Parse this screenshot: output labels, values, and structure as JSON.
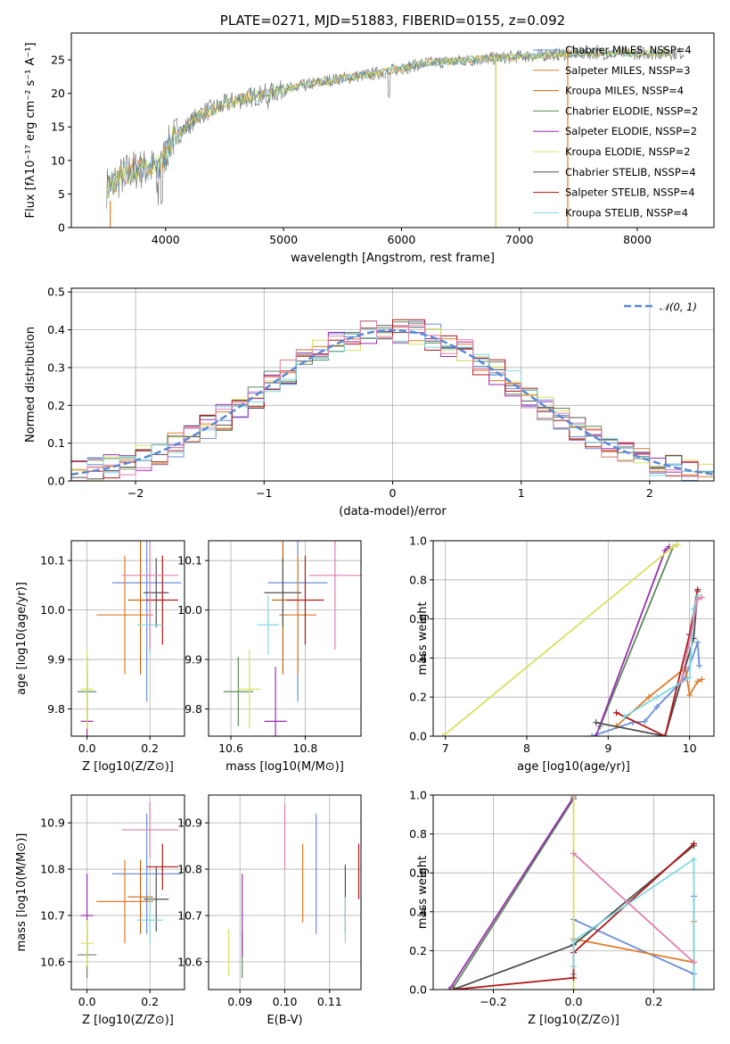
{
  "colors": [
    "#6a8fd8",
    "#e07b2a",
    "#c06a12",
    "#5a8a5a",
    "#9a2eb0",
    "#d8e060",
    "#505050",
    "#b01818",
    "#80d8e0",
    "#e080b0"
  ],
  "chart_data": [
    {
      "type": "line",
      "title": "PLATE=0271, MJD=51883, FIBERID=0155, z=0.092",
      "xlabel": "wavelength [Angstrom, rest frame]",
      "ylabel": "Flux [fλ10⁻¹⁷ erg cm⁻² s⁻¹ A⁻¹]",
      "xlim": [
        3200,
        8650
      ],
      "ylim": [
        0,
        29
      ],
      "xticks": [
        4000,
        5000,
        6000,
        7000,
        8000
      ],
      "yticks": [
        0,
        5,
        10,
        15,
        20,
        25
      ],
      "legend": [
        "Chabrier MILES, NSSP=4",
        "Salpeter MILES, NSSP=3",
        "Kroupa MILES, NSSP=4",
        "Chabrier ELODIE, NSSP=2",
        "Salpeter ELODIE, NSSP=2",
        "Kroupa ELODIE, NSSP=2",
        "Chabrier STELIB, NSSP=4",
        "Salpeter STELIB, NSSP=4",
        "Kroupa STELIB, NSSP=4"
      ],
      "legend_placement": "top-right",
      "continuum": [
        [
          3500,
          6
        ],
        [
          3700,
          8.5
        ],
        [
          3950,
          9
        ],
        [
          4050,
          13
        ],
        [
          4300,
          17
        ],
        [
          4600,
          19
        ],
        [
          5000,
          20.5
        ],
        [
          5400,
          22
        ],
        [
          5800,
          23
        ],
        [
          6200,
          24.5
        ],
        [
          6600,
          25
        ],
        [
          7000,
          25.5
        ],
        [
          7500,
          26
        ],
        [
          8000,
          26
        ],
        [
          8400,
          26
        ]
      ]
    },
    {
      "type": "step",
      "xlabel": "(data-model)/error",
      "ylabel": "Normed distribution",
      "xlim": [
        -2.5,
        2.5
      ],
      "ylim": [
        0,
        0.51
      ],
      "xticks": [
        -2,
        -1,
        0,
        1,
        2
      ],
      "xticklabels": [
        "−2",
        "−1",
        "0",
        "1",
        "2"
      ],
      "yticks": [
        0.0,
        0.1,
        0.2,
        0.3,
        0.4,
        0.5
      ],
      "yticklabels": [
        "0.0",
        "0.1",
        "0.2",
        "0.3",
        "0.4",
        "0.5"
      ],
      "legend": [
        "𝒩(0, 1)"
      ],
      "legend_placement": "top-right"
    },
    {
      "type": "scatter",
      "xlabel": "Z [log10(Z/Z⊙)]",
      "ylabel": "age  [log10(age/yr)]",
      "xlim": [
        -0.05,
        0.31
      ],
      "ylim": [
        9.745,
        10.14
      ],
      "xticks": [
        0.0,
        0.2
      ],
      "xticklabels": [
        "0.0",
        "0.2"
      ],
      "yticks": [
        9.8,
        9.9,
        10.0,
        10.1
      ],
      "yticklabels": [
        "9.8",
        "9.9",
        "10.0",
        "10.1"
      ],
      "points": [
        {
          "c": 0,
          "x": 0.19,
          "y": 10.055,
          "ex": 0.11,
          "ey": 0.24
        },
        {
          "c": 1,
          "x": 0.12,
          "y": 9.99,
          "ex": 0.09,
          "ey": 0.12
        },
        {
          "c": 2,
          "x": 0.17,
          "y": 10.02,
          "ex": 0.04,
          "ey": 0.15
        },
        {
          "c": 3,
          "x": 0.0,
          "y": 9.835,
          "ex": 0.03,
          "ey": 0.07
        },
        {
          "c": 4,
          "x": 0.0,
          "y": 9.775,
          "ex": 0.02,
          "ey": 0.11
        },
        {
          "c": 5,
          "x": 0.0,
          "y": 9.84,
          "ex": 0.02,
          "ey": 0.08
        },
        {
          "c": 6,
          "x": 0.22,
          "y": 10.035,
          "ex": 0.04,
          "ey": 0.07
        },
        {
          "c": 7,
          "x": 0.24,
          "y": 10.02,
          "ex": 0.05,
          "ey": 0.09
        },
        {
          "c": 8,
          "x": 0.2,
          "y": 9.97,
          "ex": 0.04,
          "ey": 0.06
        },
        {
          "c": 9,
          "x": 0.2,
          "y": 10.07,
          "ex": 0.09,
          "ey": 0.15
        }
      ]
    },
    {
      "type": "scatter",
      "xlabel": "mass [log10(M/M⊙)]",
      "ylabel": "",
      "xlim": [
        10.54,
        10.95
      ],
      "ylim": [
        9.745,
        10.14
      ],
      "xticks": [
        10.6,
        10.8
      ],
      "xticklabels": [
        "10.6",
        "10.8"
      ],
      "yticks": [
        9.8,
        9.9,
        10.0,
        10.1
      ],
      "yticklabels": [
        "9.8",
        "9.9",
        "10.0",
        "10.1"
      ],
      "points": [
        {
          "c": 0,
          "x": 10.78,
          "y": 10.055,
          "ex": 0.08,
          "ey": 0.24
        },
        {
          "c": 1,
          "x": 10.78,
          "y": 9.99,
          "ex": 0.05,
          "ey": 0.12
        },
        {
          "c": 2,
          "x": 10.74,
          "y": 10.02,
          "ex": 0.03,
          "ey": 0.15
        },
        {
          "c": 3,
          "x": 10.62,
          "y": 9.835,
          "ex": 0.04,
          "ey": 0.07
        },
        {
          "c": 4,
          "x": 10.72,
          "y": 9.775,
          "ex": 0.03,
          "ey": 0.11
        },
        {
          "c": 5,
          "x": 10.65,
          "y": 9.84,
          "ex": 0.03,
          "ey": 0.08
        },
        {
          "c": 6,
          "x": 10.74,
          "y": 10.035,
          "ex": 0.05,
          "ey": 0.07
        },
        {
          "c": 7,
          "x": 10.8,
          "y": 10.02,
          "ex": 0.05,
          "ey": 0.09
        },
        {
          "c": 8,
          "x": 10.7,
          "y": 9.97,
          "ex": 0.03,
          "ey": 0.06
        },
        {
          "c": 9,
          "x": 10.88,
          "y": 10.07,
          "ex": 0.07,
          "ey": 0.15
        }
      ]
    },
    {
      "type": "line",
      "xlabel": "age  [log10(age/yr)]",
      "ylabel": "mass weight",
      "xlim": [
        6.85,
        10.3
      ],
      "ylim": [
        0,
        1.0
      ],
      "xticks": [
        7,
        8,
        9,
        10
      ],
      "xticklabels": [
        "7",
        "8",
        "9",
        "10"
      ],
      "yticks": [
        0.0,
        0.2,
        0.4,
        0.6,
        0.8,
        1.0
      ],
      "yticklabels": [
        "0.0",
        "0.2",
        "0.4",
        "0.6",
        "0.8",
        "1.0"
      ],
      "series": [
        {
          "c": 0,
          "x": [
            8.8,
            9.3,
            9.45,
            9.6,
            9.95,
            10.1,
            10.12
          ],
          "y": [
            0.0,
            0.07,
            0.075,
            0.15,
            0.3,
            0.48,
            0.36
          ]
        },
        {
          "c": 1,
          "x": [
            9.1,
            9.5,
            9.95,
            10.0,
            10.1,
            10.15
          ],
          "y": [
            0.05,
            0.2,
            0.35,
            0.21,
            0.28,
            0.29
          ]
        },
        {
          "c": 3,
          "x": [
            8.9,
            9.8,
            9.85
          ],
          "y": [
            0.05,
            0.97,
            0.98
          ]
        },
        {
          "c": 4,
          "x": [
            8.85,
            9.7,
            9.75
          ],
          "y": [
            0.0,
            0.95,
            0.97
          ]
        },
        {
          "c": 5,
          "x": [
            6.97,
            9.8,
            9.85
          ],
          "y": [
            0.0,
            0.97,
            0.98
          ]
        },
        {
          "c": 6,
          "x": [
            8.85,
            9.7,
            10.05,
            10.1
          ],
          "y": [
            0.07,
            0.0,
            0.5,
            0.74
          ]
        },
        {
          "c": 7,
          "x": [
            9.1,
            9.7,
            10.0,
            10.1
          ],
          "y": [
            0.12,
            0.0,
            0.52,
            0.75
          ]
        },
        {
          "c": 8,
          "x": [
            9.2,
            9.6,
            10.0,
            10.05,
            10.1
          ],
          "y": [
            0.1,
            0.2,
            0.3,
            0.65,
            0.72
          ]
        },
        {
          "c": 9,
          "x": [
            9.9,
            10.1,
            10.15
          ],
          "y": [
            0.28,
            0.7,
            0.71
          ]
        }
      ]
    },
    {
      "type": "scatter",
      "xlabel": "Z [log10(Z/Z⊙)]",
      "ylabel": "mass [log10(M/M⊙)]",
      "xlim": [
        -0.05,
        0.31
      ],
      "ylim": [
        10.54,
        10.96
      ],
      "xticks": [
        0.0,
        0.2
      ],
      "xticklabels": [
        "0.0",
        "0.2"
      ],
      "yticks": [
        10.6,
        10.7,
        10.8,
        10.9
      ],
      "yticklabels": [
        "10.6",
        "10.7",
        "10.8",
        "10.9"
      ],
      "points": [
        {
          "c": 0,
          "x": 0.19,
          "y": 10.79,
          "ex": 0.11,
          "ey": 0.13
        },
        {
          "c": 1,
          "x": 0.12,
          "y": 10.73,
          "ex": 0.09,
          "ey": 0.09
        },
        {
          "c": 2,
          "x": 0.17,
          "y": 10.74,
          "ex": 0.04,
          "ey": 0.08
        },
        {
          "c": 3,
          "x": 0.0,
          "y": 10.615,
          "ex": 0.03,
          "ey": 0.05
        },
        {
          "c": 4,
          "x": 0.0,
          "y": 10.7,
          "ex": 0.02,
          "ey": 0.09
        },
        {
          "c": 5,
          "x": 0.0,
          "y": 10.64,
          "ex": 0.02,
          "ey": 0.05
        },
        {
          "c": 6,
          "x": 0.22,
          "y": 10.735,
          "ex": 0.04,
          "ey": 0.07
        },
        {
          "c": 7,
          "x": 0.24,
          "y": 10.805,
          "ex": 0.05,
          "ey": 0.05
        },
        {
          "c": 8,
          "x": 0.2,
          "y": 10.69,
          "ex": 0.04,
          "ey": 0.05
        },
        {
          "c": 9,
          "x": 0.2,
          "y": 10.885,
          "ex": 0.09,
          "ey": 0.06
        }
      ]
    },
    {
      "type": "scatter",
      "xlabel": "E(B-V)",
      "ylabel": "",
      "xlim": [
        0.083,
        0.117
      ],
      "ylim": [
        10.54,
        10.96
      ],
      "xticks": [
        0.09,
        0.1,
        0.11
      ],
      "xticklabels": [
        "0.09",
        "0.10",
        "0.11"
      ],
      "yticks": [
        10.6,
        10.7,
        10.8,
        10.9
      ],
      "yticklabels": [
        "10.6",
        "10.7",
        "10.8",
        "10.9"
      ],
      "points": [
        {
          "c": 0,
          "x": 0.107,
          "y": 10.79,
          "ex": 0,
          "ey": 0.13
        },
        {
          "c": 1,
          "x": 0.104,
          "y": 10.77,
          "ex": 0,
          "ey": 0.085
        },
        {
          "c": 3,
          "x": 0.0905,
          "y": 10.615,
          "ex": 0,
          "ey": 0.05
        },
        {
          "c": 4,
          "x": 0.0905,
          "y": 10.7,
          "ex": 0,
          "ey": 0.09
        },
        {
          "c": 5,
          "x": 0.0875,
          "y": 10.62,
          "ex": 0,
          "ey": 0.05
        },
        {
          "c": 6,
          "x": 0.1135,
          "y": 10.735,
          "ex": 0,
          "ey": 0.075
        },
        {
          "c": 7,
          "x": 0.1165,
          "y": 10.795,
          "ex": 0,
          "ey": 0.06
        },
        {
          "c": 8,
          "x": 0.1135,
          "y": 10.69,
          "ex": 0,
          "ey": 0.05
        },
        {
          "c": 9,
          "x": 0.1,
          "y": 10.87,
          "ex": 0,
          "ey": 0.07
        }
      ]
    },
    {
      "type": "line",
      "xlabel": "Z [log10(Z/Z⊙)]",
      "ylabel": "mass weight",
      "xlim": [
        -0.35,
        0.35
      ],
      "ylim": [
        0,
        1.0
      ],
      "xticks": [
        -0.2,
        0.0,
        0.2
      ],
      "xticklabels": [
        "−0.2",
        "0.0",
        "0.2"
      ],
      "yticks": [
        0.0,
        0.2,
        0.4,
        0.6,
        0.8,
        1.0
      ],
      "yticklabels": [
        "0.0",
        "0.2",
        "0.4",
        "0.6",
        "0.8",
        "1.0"
      ],
      "series": [
        {
          "c": 0,
          "x": [
            0.0,
            0.0,
            0.3,
            0.3,
            0.3
          ],
          "y": [
            0.08,
            0.36,
            0.08,
            0.48,
            0.0
          ]
        },
        {
          "c": 1,
          "x": [
            0.0,
            0.3,
            0.3
          ],
          "y": [
            0.26,
            0.14,
            0.35
          ]
        },
        {
          "c": 3,
          "x": [
            -0.3,
            0.0
          ],
          "y": [
            0.01,
            0.98
          ]
        },
        {
          "c": 4,
          "x": [
            -0.31,
            0.0
          ],
          "y": [
            0.0,
            0.99
          ]
        },
        {
          "c": 5,
          "x": [
            0.0,
            0.0
          ],
          "y": [
            0.0,
            1.0
          ]
        },
        {
          "c": 6,
          "x": [
            -0.3,
            0.0,
            0.3
          ],
          "y": [
            0.0,
            0.23,
            0.74
          ]
        },
        {
          "c": 7,
          "x": [
            -0.3,
            0.0,
            0.0,
            0.3
          ],
          "y": [
            0.0,
            0.06,
            0.19,
            0.75
          ]
        },
        {
          "c": 8,
          "x": [
            0.0,
            0.0,
            0.3,
            0.3
          ],
          "y": [
            0.12,
            0.25,
            0.67,
            0.0
          ]
        },
        {
          "c": 9,
          "x": [
            0.0,
            0.3
          ],
          "y": [
            0.7,
            0.14
          ]
        }
      ]
    }
  ]
}
